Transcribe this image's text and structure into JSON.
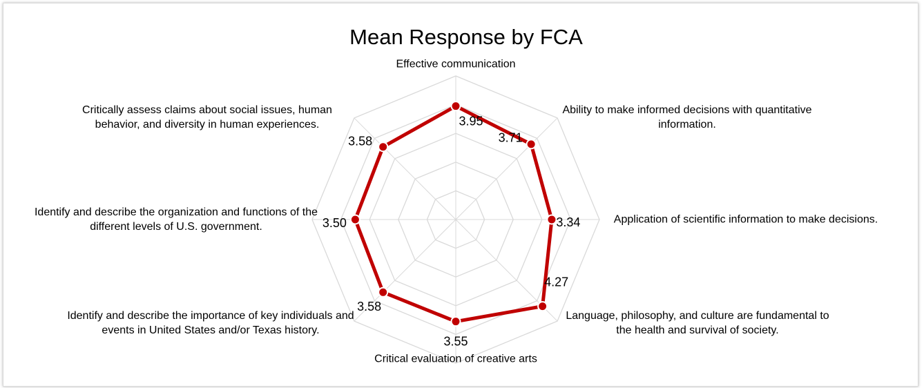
{
  "chart_data": {
    "type": "radar",
    "title": "Mean Response by FCA",
    "categories": [
      "Effective communication",
      "Ability to make informed decisions with quantitative information.",
      "Application of scientific information to make decisions.",
      "Language, philosophy, and culture are fundamental to the health and survival of society.",
      "Critical evaluation of creative arts",
      "Identify and describe the importance of key individuals and events in United States and/or Texas history.",
      "Identify and describe the organization and functions of the different levels of U.S. government.",
      "Critically assess claims about social issues, human behavior, and diversity in human experiences."
    ],
    "values": [
      3.95,
      3.71,
      3.34,
      4.27,
      3.55,
      3.58,
      3.5,
      3.58
    ],
    "value_labels": [
      "3.95",
      "3.71",
      "3.34",
      "4.27",
      "3.55",
      "3.58",
      "3.50",
      "3.58"
    ],
    "color": "#c00000",
    "ylim": [
      0,
      5
    ],
    "yticks": [
      1,
      2,
      3,
      4,
      5
    ],
    "grid": true
  }
}
